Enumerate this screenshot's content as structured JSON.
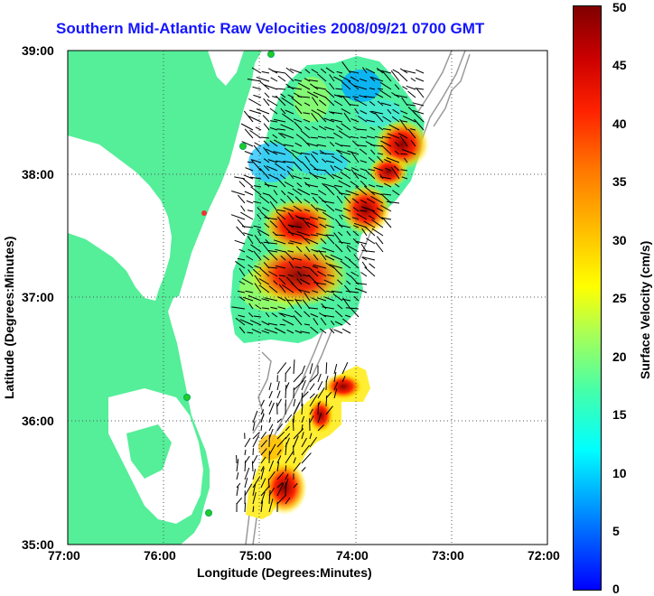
{
  "title": "Southern Mid-Atlantic Raw Velocities 2008/09/21 0700 GMT",
  "xlabel": "Longitude (Degrees:Minutes)",
  "ylabel": "Latitude (Degrees:Minutes)",
  "x_ticks": [
    "77:00",
    "76:00",
    "75:00",
    "74:00",
    "73:00",
    "72:00"
  ],
  "y_ticks": [
    "39:00",
    "38:00",
    "37:00",
    "36:00",
    "35:00"
  ],
  "colorbar": {
    "label": "Surface Velocity (cm/s)",
    "ticks": [
      "50",
      "45",
      "40",
      "35",
      "30",
      "25",
      "20",
      "15",
      "10",
      "5",
      "0"
    ],
    "range": [
      0,
      50
    ]
  },
  "colors": {
    "land": "#55ee99",
    "title": "#1515ff",
    "grid": "#555555",
    "bathymetry": "#9a9a9a",
    "station": "#22cc22"
  }
}
